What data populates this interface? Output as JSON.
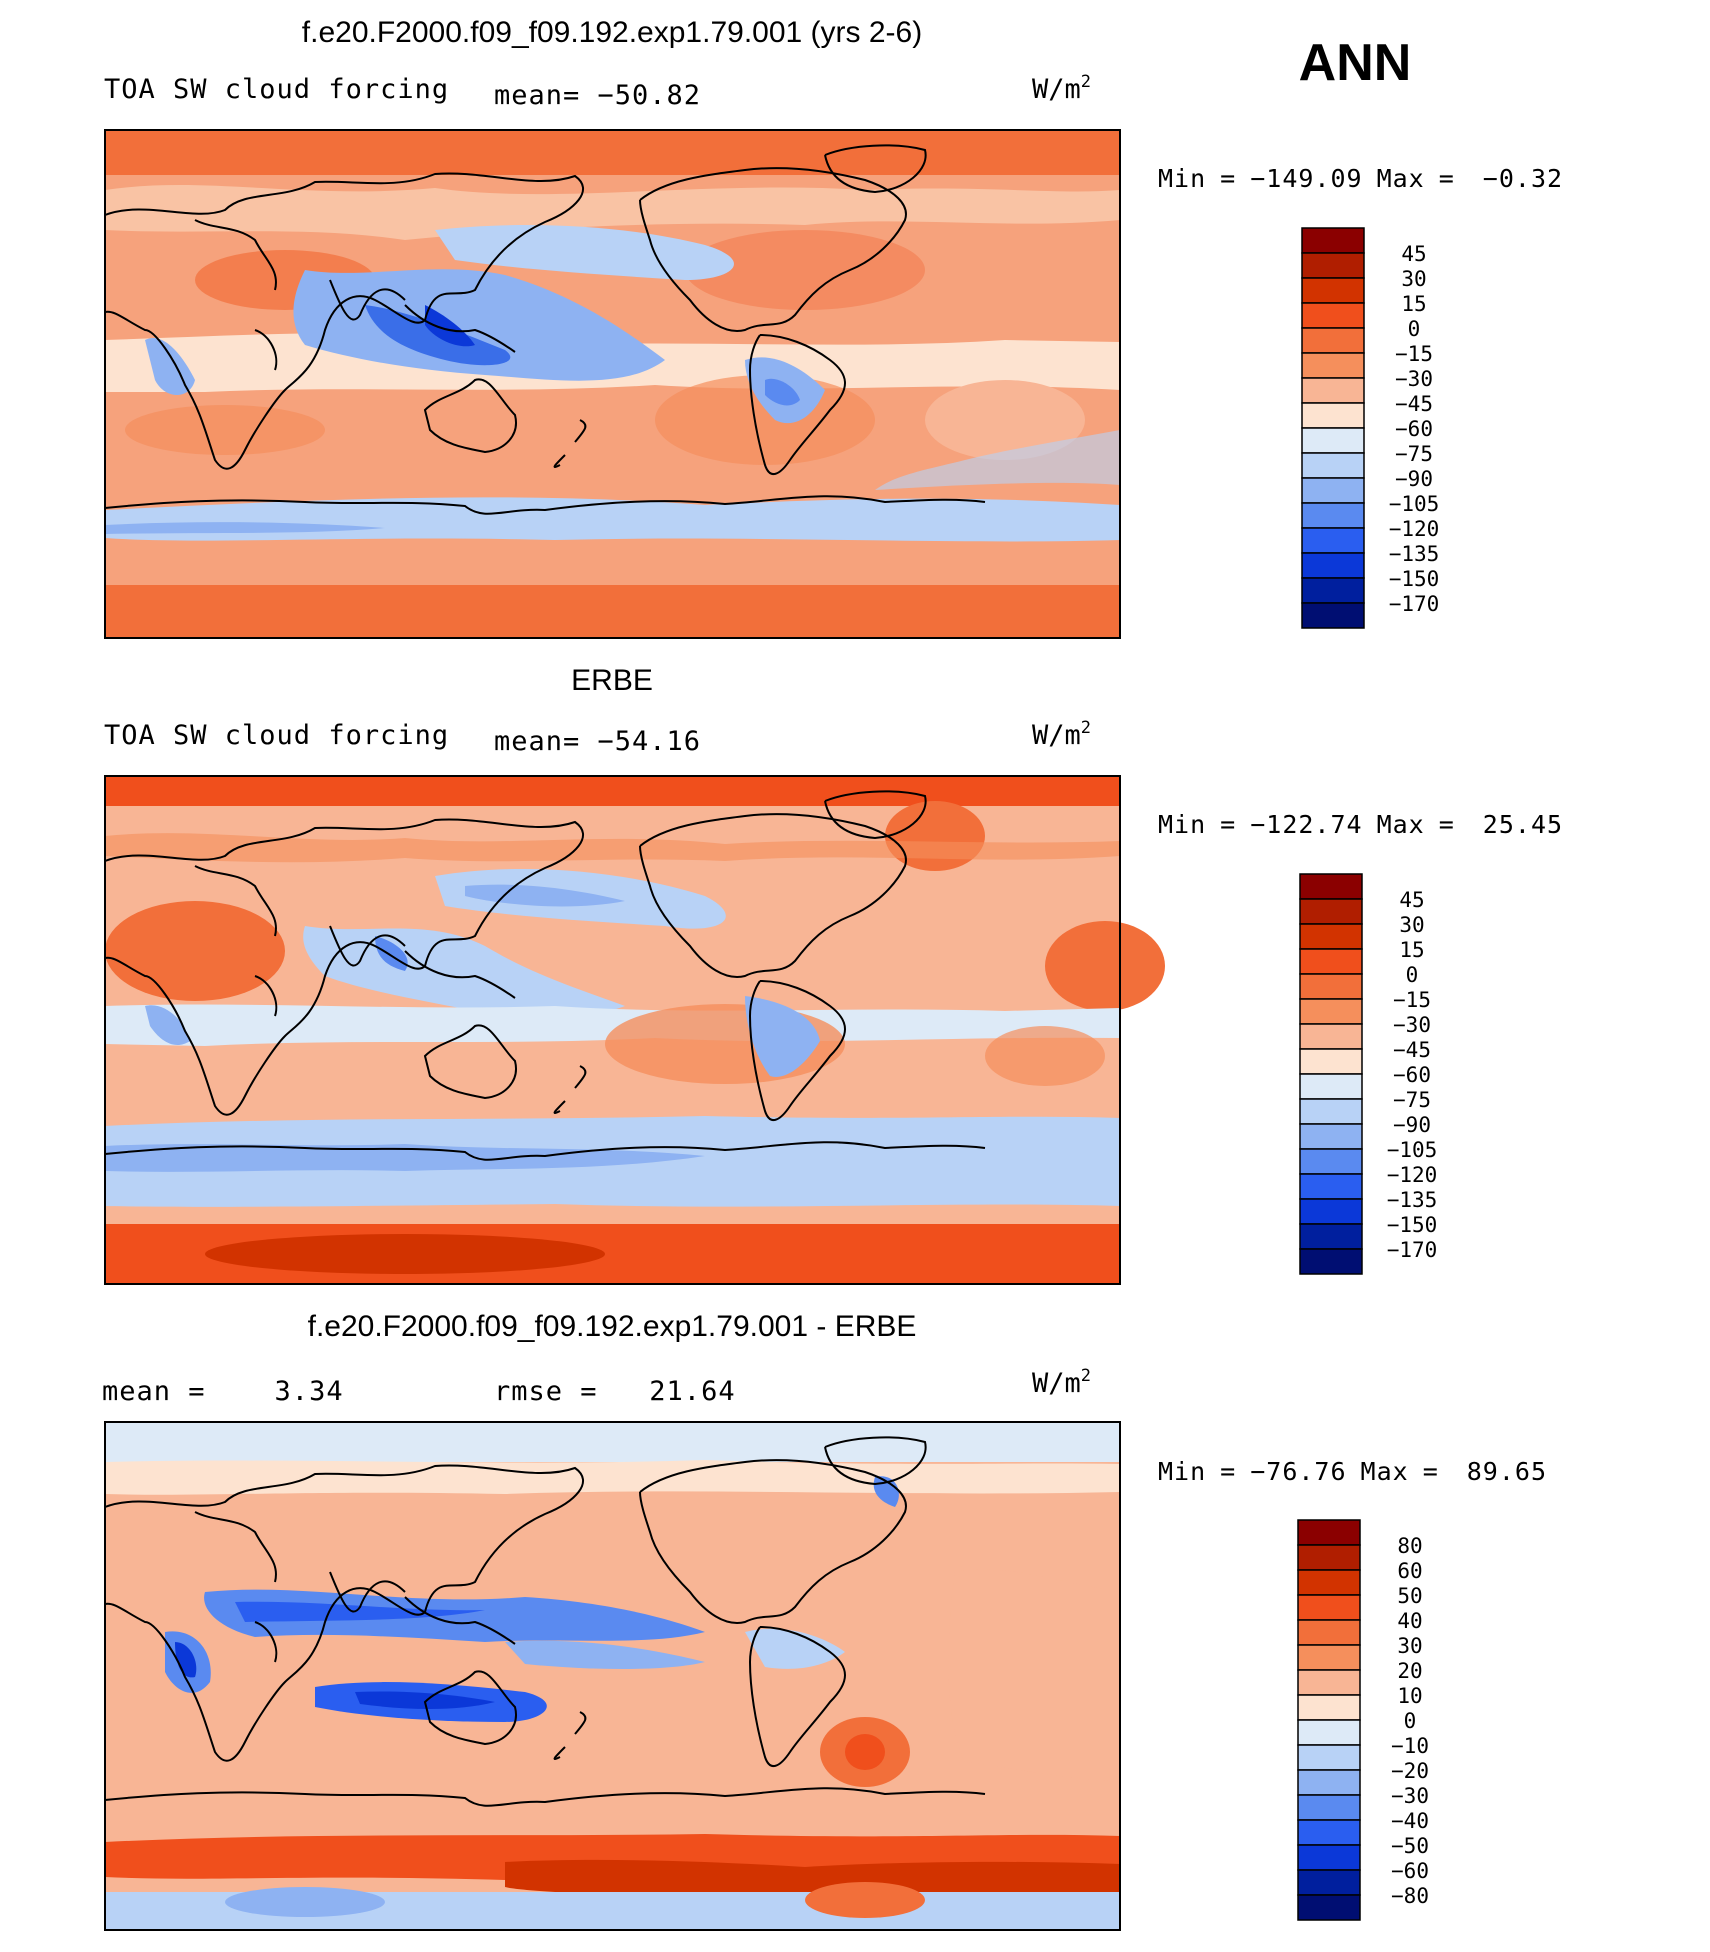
{
  "season": "ANN",
  "units": "W/m",
  "units_sup": "2",
  "panels": [
    {
      "id": "model",
      "title": "f.e20.F2000.f09_f09.192.exp1.79.001 (yrs 2-6)",
      "left_label": "TOA SW cloud forcing",
      "center_label": "mean= −50.82",
      "stats": {
        "min_label": "Min",
        "min": "−149.09",
        "max_label": "Max",
        "max": "−0.32"
      },
      "colorbar": {
        "labels": [
          "45",
          "30",
          "15",
          "0",
          "−15",
          "−30",
          "−45",
          "−60",
          "−75",
          "−90",
          "−105",
          "−120",
          "−135",
          "−150",
          "−170"
        ],
        "colors": [
          "#8b0000",
          "#b01e00",
          "#d23300",
          "#f04f1c",
          "#f26f3a",
          "#f58f5c",
          "#f8b595",
          "#fde3d0",
          "#ddeaf7",
          "#b8d2f6",
          "#8eb2f2",
          "#5a8af0",
          "#2a5ef0",
          "#0b38d8",
          "#001f9e",
          "#000e72"
        ]
      }
    },
    {
      "id": "obs",
      "title": "ERBE",
      "left_label": "TOA SW cloud forcing",
      "center_label": "mean= −54.16",
      "stats": {
        "min_label": "Min",
        "min": "−122.74",
        "max_label": "Max",
        "max": "25.45"
      },
      "colorbar": {
        "labels": [
          "45",
          "30",
          "15",
          "0",
          "−15",
          "−30",
          "−45",
          "−60",
          "−75",
          "−90",
          "−105",
          "−120",
          "−135",
          "−150",
          "−170"
        ],
        "colors": [
          "#8b0000",
          "#b01e00",
          "#d23300",
          "#f04f1c",
          "#f26f3a",
          "#f58f5c",
          "#f8b595",
          "#fde3d0",
          "#ddeaf7",
          "#b8d2f6",
          "#8eb2f2",
          "#5a8af0",
          "#2a5ef0",
          "#0b38d8",
          "#001f9e",
          "#000e72"
        ]
      }
    },
    {
      "id": "diff",
      "title": "f.e20.F2000.f09_f09.192.exp1.79.001 - ERBE",
      "left_label": "mean =    3.34",
      "center_label": "rmse =   21.64",
      "stats": {
        "min_label": "Min",
        "min": "−76.76",
        "max_label": "Max",
        "max": "89.65"
      },
      "colorbar": {
        "labels": [
          "80",
          "60",
          "50",
          "40",
          "30",
          "20",
          "10",
          "0",
          "−10",
          "−20",
          "−30",
          "−40",
          "−50",
          "−60",
          "−80"
        ],
        "colors": [
          "#8b0000",
          "#b01e00",
          "#d23300",
          "#f04f1c",
          "#f26f3a",
          "#f58f5c",
          "#f8b595",
          "#fde3d0",
          "#ddeaf7",
          "#b8d2f6",
          "#8eb2f2",
          "#5a8af0",
          "#2a5ef0",
          "#0b38d8",
          "#001f9e",
          "#000e72"
        ]
      }
    }
  ]
}
